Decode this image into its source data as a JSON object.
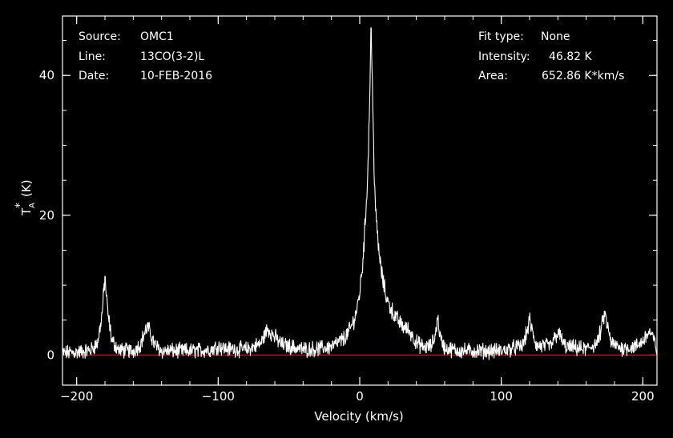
{
  "info": {
    "source_label": "Source:",
    "source_value": "OMC1",
    "line_label": "Line:",
    "line_value": "13CO(3-2)L",
    "date_label": "Date:",
    "date_value": "10-FEB-2016",
    "fit_label": "Fit type:",
    "fit_value": "None",
    "intensity_label": "Intensity:",
    "intensity_value": "46.82 K",
    "area_label": "Area:",
    "area_value": "652.86 K*km/s"
  },
  "colors": {
    "background": "#000000",
    "trace": "#ffffff",
    "baseline": "#ff0000",
    "axes": "#ffffff"
  },
  "chart_data": {
    "type": "line",
    "xlabel": "Velocity (km/s)",
    "ylabel_main": "T",
    "ylabel_sub": "A",
    "ylabel_sup": "*",
    "ylabel_unit": "(K)",
    "xlim": [
      -210,
      210
    ],
    "ylim": [
      -4.3,
      48.5
    ],
    "x_ticks": [
      -200,
      -100,
      0,
      100,
      200
    ],
    "x_tick_labels": [
      "−200",
      "−100",
      "0",
      "100",
      "200"
    ],
    "y_ticks": [
      0,
      20,
      40
    ],
    "y_tick_labels": [
      "0",
      "20",
      "40"
    ],
    "x_minor_step": 20,
    "y_minor_step": 5,
    "baseline_y": 0,
    "grid": false,
    "legend": "none",
    "series": [
      {
        "x": [
          -210,
          -200,
          -190,
          -185,
          -182,
          -180,
          -178,
          -175,
          -170,
          -160,
          -155,
          -152,
          -150,
          -148,
          -145,
          -140,
          -120,
          -105,
          -100,
          -95,
          -80,
          -70,
          -67,
          -65,
          -62,
          -55,
          -40,
          -30,
          -20,
          -12,
          -8,
          -5,
          -2,
          0,
          2,
          4,
          6,
          7,
          8,
          9,
          10,
          11,
          12,
          14,
          16,
          18,
          20,
          25,
          30,
          35,
          40,
          45,
          50,
          53,
          55,
          57,
          60,
          70,
          100,
          115,
          118,
          120,
          122,
          125,
          135,
          138,
          140,
          142,
          145,
          160,
          168,
          171,
          173,
          175,
          178,
          185,
          195,
          200,
          203,
          205,
          208,
          210
        ],
        "y": [
          0.3,
          0.4,
          0.7,
          1.8,
          6,
          11.2,
          6,
          2,
          0.7,
          0.6,
          1.5,
          3.2,
          4,
          3.2,
          1.5,
          0.6,
          0.6,
          0.8,
          1.3,
          0.9,
          0.8,
          1.6,
          3,
          3.8,
          3,
          1.5,
          0.8,
          0.9,
          1.2,
          2.2,
          3.2,
          4.5,
          6.5,
          9,
          13,
          19,
          28,
          37,
          46.8,
          38,
          28,
          22,
          18,
          14,
          11,
          9,
          7.5,
          5.5,
          4.2,
          3.5,
          1.8,
          1.1,
          1.2,
          2.4,
          5.5,
          2.4,
          1,
          0.6,
          0.6,
          1.3,
          3.2,
          5,
          3.2,
          1.3,
          1.3,
          2.5,
          3.2,
          2.5,
          1.2,
          0.8,
          1.8,
          4,
          6,
          4,
          1.6,
          1,
          1.2,
          2,
          3,
          3.3,
          2,
          0.8
        ]
      }
    ]
  }
}
